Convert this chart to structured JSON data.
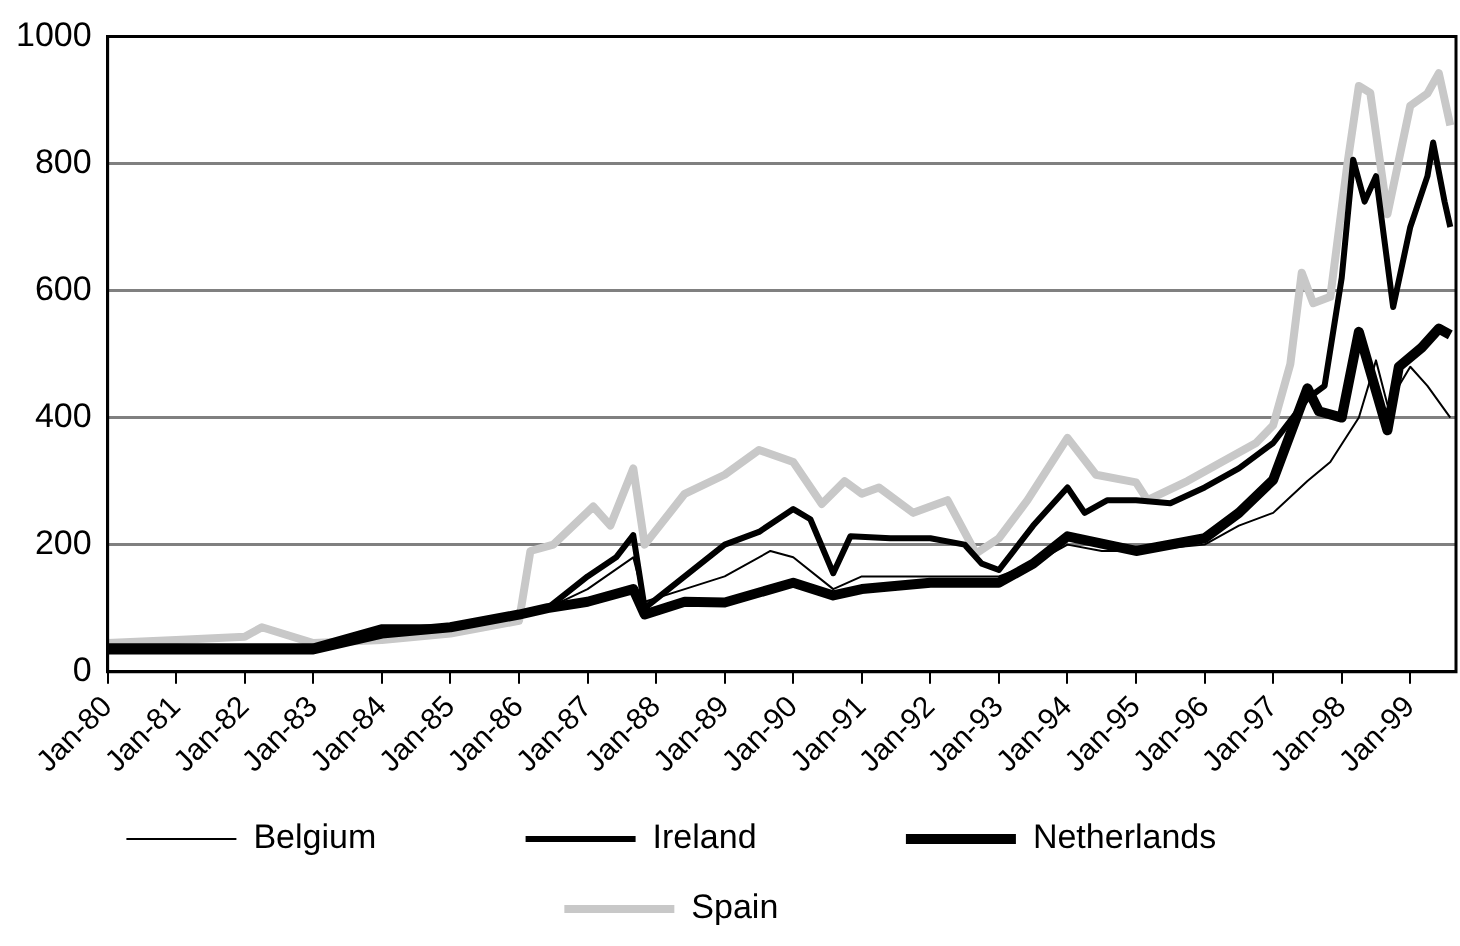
{
  "chart_data": {
    "type": "line",
    "xlim": [
      "1980-01",
      "1999-09"
    ],
    "xticks": [
      {
        "value": "1980-01",
        "label": "Jan-80"
      },
      {
        "value": "1981-01",
        "label": "Jan-81"
      },
      {
        "value": "1982-01",
        "label": "Jan-82"
      },
      {
        "value": "1983-01",
        "label": "Jan-83"
      },
      {
        "value": "1984-01",
        "label": "Jan-84"
      },
      {
        "value": "1985-01",
        "label": "Jan-85"
      },
      {
        "value": "1986-01",
        "label": "Jan-86"
      },
      {
        "value": "1987-01",
        "label": "Jan-87"
      },
      {
        "value": "1988-01",
        "label": "Jan-88"
      },
      {
        "value": "1989-01",
        "label": "Jan-89"
      },
      {
        "value": "1990-01",
        "label": "Jan-90"
      },
      {
        "value": "1991-01",
        "label": "Jan-91"
      },
      {
        "value": "1992-01",
        "label": "Jan-92"
      },
      {
        "value": "1993-01",
        "label": "Jan-93"
      },
      {
        "value": "1994-01",
        "label": "Jan-94"
      },
      {
        "value": "1995-01",
        "label": "Jan-95"
      },
      {
        "value": "1996-01",
        "label": "Jan-96"
      },
      {
        "value": "1997-01",
        "label": "Jan-97"
      },
      {
        "value": "1998-01",
        "label": "Jan-98"
      },
      {
        "value": "1999-01",
        "label": "Jan-99"
      }
    ],
    "ylim": [
      0,
      1000
    ],
    "yticks": [
      0,
      200,
      400,
      600,
      800,
      1000
    ],
    "grid": "y",
    "legend": "bottom",
    "marker": "none",
    "series": [
      {
        "name": "Belgium",
        "color": "#000000",
        "x": [
          "1980-01",
          "1981-01",
          "1982-01",
          "1983-01",
          "1984-01",
          "1985-01",
          "1986-01",
          "1986-06",
          "1987-01",
          "1987-09",
          "1987-11",
          "1988-06",
          "1989-01",
          "1989-09",
          "1990-01",
          "1990-08",
          "1991-01",
          "1992-01",
          "1992-10",
          "1993-01",
          "1993-07",
          "1994-01",
          "1994-07",
          "1995-01",
          "1995-07",
          "1996-01",
          "1996-07",
          "1997-01",
          "1997-07",
          "1997-11",
          "1998-04",
          "1998-07",
          "1998-09",
          "1999-01",
          "1999-04",
          "1999-08"
        ],
        "values": [
          40,
          40,
          40,
          40,
          60,
          70,
          90,
          100,
          130,
          180,
          110,
          130,
          150,
          190,
          180,
          130,
          150,
          150,
          150,
          150,
          170,
          200,
          190,
          190,
          195,
          200,
          230,
          250,
          300,
          330,
          400,
          490,
          420,
          480,
          450,
          400
        ]
      },
      {
        "name": "Ireland",
        "color": "#000000",
        "x": [
          "1980-01",
          "1981-01",
          "1982-01",
          "1983-01",
          "1984-01",
          "1985-01",
          "1986-01",
          "1986-06",
          "1987-01",
          "1987-06",
          "1987-09",
          "1987-11",
          "1988-06",
          "1989-01",
          "1989-07",
          "1990-01",
          "1990-04",
          "1990-08",
          "1990-11",
          "1991-06",
          "1992-01",
          "1992-07",
          "1992-10",
          "1993-01",
          "1993-07",
          "1994-01",
          "1994-04",
          "1994-08",
          "1995-01",
          "1995-07",
          "1996-01",
          "1996-07",
          "1997-01",
          "1997-07",
          "1997-10",
          "1998-01",
          "1998-03",
          "1998-05",
          "1998-07",
          "1998-10",
          "1999-01",
          "1999-04",
          "1999-05",
          "1999-07",
          "1999-08"
        ],
        "values": [
          40,
          40,
          40,
          40,
          70,
          70,
          90,
          100,
          150,
          180,
          215,
          100,
          150,
          200,
          220,
          256,
          240,
          155,
          213,
          210,
          210,
          200,
          170,
          160,
          230,
          290,
          250,
          270,
          270,
          265,
          290,
          320,
          360,
          430,
          450,
          620,
          806,
          740,
          780,
          574,
          700,
          780,
          833,
          740,
          700
        ]
      },
      {
        "name": "Netherlands",
        "color": "#000000",
        "x": [
          "1980-01",
          "1981-01",
          "1982-01",
          "1983-01",
          "1984-01",
          "1985-01",
          "1986-01",
          "1986-06",
          "1987-01",
          "1987-09",
          "1987-11",
          "1988-06",
          "1989-01",
          "1990-01",
          "1990-08",
          "1991-01",
          "1992-01",
          "1993-01",
          "1993-07",
          "1994-01",
          "1995-01",
          "1996-01",
          "1996-07",
          "1997-01",
          "1997-07",
          "1997-09",
          "1998-01",
          "1998-04",
          "1998-09",
          "1998-11",
          "1999-03",
          "1999-06",
          "1999-08"
        ],
        "values": [
          35,
          35,
          35,
          35,
          60,
          70,
          90,
          100,
          110,
          130,
          90,
          110,
          109,
          140,
          120,
          130,
          140,
          140,
          170,
          213,
          190,
          210,
          250,
          302,
          446,
          410,
          400,
          535,
          380,
          480,
          510,
          540,
          530
        ]
      },
      {
        "name": "Spain",
        "color": "#c8c8c8",
        "x": [
          "1980-01",
          "1981-01",
          "1982-01",
          "1982-04",
          "1983-01",
          "1984-01",
          "1985-01",
          "1986-01",
          "1986-03",
          "1986-07",
          "1987-02",
          "1987-05",
          "1987-09",
          "1987-11",
          "1988-06",
          "1989-01",
          "1989-07",
          "1990-01",
          "1990-06",
          "1990-10",
          "1991-01",
          "1991-04",
          "1991-10",
          "1992-04",
          "1992-09",
          "1993-01",
          "1993-06",
          "1994-01",
          "1994-06",
          "1995-01",
          "1995-03",
          "1995-10",
          "1996-04",
          "1996-10",
          "1997-01",
          "1997-04",
          "1997-06",
          "1997-08",
          "1997-11",
          "1998-02",
          "1998-04",
          "1998-06",
          "1998-09",
          "1999-01",
          "1999-04",
          "1999-06",
          "1999-08"
        ],
        "values": [
          45,
          50,
          55,
          70,
          45,
          50,
          60,
          80,
          190,
          200,
          260,
          230,
          320,
          200,
          280,
          310,
          349,
          330,
          264,
          300,
          280,
          290,
          250,
          270,
          186,
          210,
          270,
          368,
          310,
          298,
          270,
          300,
          330,
          360,
          388,
          484,
          628,
          580,
          590,
          800,
          922,
          911,
          720,
          891,
          910,
          942,
          860
        ]
      }
    ]
  }
}
